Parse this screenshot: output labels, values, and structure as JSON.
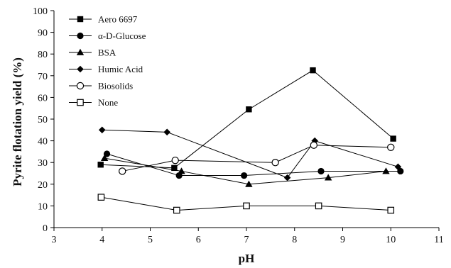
{
  "chart_data": {
    "type": "line",
    "title": "",
    "xlabel": "pH",
    "ylabel": "Pyrite flotation yield (%)",
    "xlim": [
      3,
      11
    ],
    "ylim": [
      0,
      100
    ],
    "xticks": [
      3,
      4,
      5,
      6,
      7,
      8,
      9,
      10,
      11
    ],
    "yticks": [
      0,
      10,
      20,
      30,
      40,
      50,
      60,
      70,
      80,
      90,
      100
    ],
    "grid": false,
    "legend_position": "top-left",
    "series": [
      {
        "name": "Aero 6697",
        "marker": "square-filled",
        "x": [
          3.97,
          5.5,
          7.05,
          8.38,
          10.05
        ],
        "y": [
          29,
          27.5,
          54.5,
          72.5,
          41
        ]
      },
      {
        "name": "α-D-Glucose",
        "marker": "circle-filled",
        "x": [
          4.1,
          5.6,
          6.95,
          8.55,
          10.2
        ],
        "y": [
          34,
          24,
          24,
          26,
          26
        ]
      },
      {
        "name": "BSA",
        "marker": "triangle-filled",
        "x": [
          4.05,
          5.65,
          7.05,
          8.7,
          9.9
        ],
        "y": [
          32,
          26,
          20,
          23,
          26
        ]
      },
      {
        "name": "Humic Acid",
        "marker": "diamond-filled",
        "x": [
          4.0,
          5.35,
          7.85,
          8.42,
          10.15
        ],
        "y": [
          45,
          44,
          23,
          40,
          28
        ]
      },
      {
        "name": "Biosolids",
        "marker": "circle-open",
        "x": [
          4.42,
          5.52,
          7.6,
          8.4,
          10.0
        ],
        "y": [
          26,
          31,
          30,
          38,
          37
        ]
      },
      {
        "name": "None",
        "marker": "square-open",
        "x": [
          3.98,
          5.55,
          7.0,
          8.5,
          10.0
        ],
        "y": [
          14,
          8,
          10,
          10,
          8
        ]
      }
    ]
  }
}
